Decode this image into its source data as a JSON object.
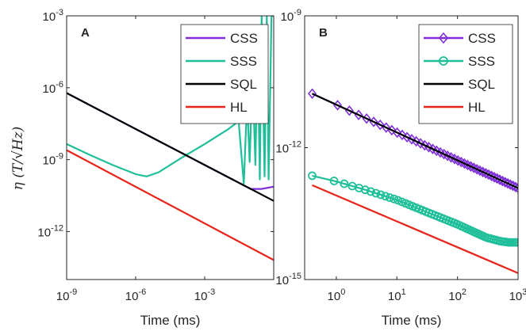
{
  "chart_data": [
    {
      "type": "line",
      "panel_label": "A",
      "xlabel": "Time (ms)",
      "ylabel": "η (T/√Hz)",
      "xscale": "log",
      "yscale": "log",
      "xlim": [
        1e-09,
        1
      ],
      "ylim": [
        1e-14,
        0.001
      ],
      "xticks": [
        1e-09,
        1e-06,
        0.001
      ],
      "xtick_labels": [
        [
          "10",
          "-9"
        ],
        [
          "10",
          "-6"
        ],
        [
          "10",
          "-3"
        ]
      ],
      "yticks": [
        1e-12,
        1e-09,
        1e-06,
        0.001
      ],
      "ytick_labels": [
        [
          "10",
          "-12"
        ],
        [
          "10",
          "-9"
        ],
        [
          "10",
          "-6"
        ],
        [
          "10",
          "-3"
        ]
      ],
      "legend_location": "top-right",
      "series": [
        {
          "name": "CSS",
          "color": "#7E2FD8",
          "marker": "none",
          "x": [
            1e-09,
            1e-08,
            1e-07,
            1e-06,
            1e-05,
            0.0001,
            0.001,
            0.01,
            0.03,
            0.1,
            0.3,
            1
          ],
          "y": [
            6e-07,
            1.9e-07,
            6e-08,
            1.9e-08,
            6e-09,
            1.9e-09,
            6e-10,
            1.9e-10,
            1.1e-10,
            6e-11,
            6e-11,
            7.5e-11
          ]
        },
        {
          "name": "SSS",
          "color": "#1FBF9A",
          "marker": "none",
          "x": [
            1e-09,
            1e-08,
            1e-07,
            1e-06,
            3e-06,
            1e-05,
            0.0001,
            0.001,
            0.01,
            0.03,
            0.05,
            0.07,
            0.09,
            0.12,
            0.16,
            0.2,
            0.25,
            0.3,
            0.4,
            0.5,
            0.6,
            0.8,
            1
          ],
          "y": [
            4.5e-09,
            1.6e-09,
            6e-10,
            2.5e-10,
            2e-10,
            3e-10,
            1.2e-09,
            4.5e-09,
            1.8e-08,
            4e-08,
            1e-10,
            3e-07,
            8e-10,
            4e-06,
            6e-10,
            6e-05,
            1.5e-10,
            0.001,
            2e-10,
            0.001,
            1.5e-10,
            0.001,
            0.001
          ]
        },
        {
          "name": "SQL",
          "color": "#000000",
          "marker": "none",
          "x": [
            1e-09,
            1
          ],
          "y": [
            6e-07,
            1.9e-11
          ]
        },
        {
          "name": "HL",
          "color": "#E8231A",
          "marker": "none",
          "x": [
            1e-09,
            1
          ],
          "y": [
            2.5e-09,
            6.5e-14
          ]
        }
      ]
    },
    {
      "type": "line",
      "panel_label": "B",
      "xlabel": "Time (ms)",
      "ylabel": "",
      "xscale": "log",
      "yscale": "log",
      "xlim": [
        0.3,
        1000
      ],
      "ylim": [
        1e-15,
        1e-09
      ],
      "xticks": [
        1,
        10,
        100,
        1000
      ],
      "xtick_labels": [
        [
          "10",
          "0"
        ],
        [
          "10",
          "1"
        ],
        [
          "10",
          "2"
        ],
        [
          "10",
          "3"
        ]
      ],
      "yticks": [
        1e-15,
        1e-12,
        1e-09
      ],
      "ytick_labels": [
        [
          "10",
          "-15"
        ],
        [
          "10",
          "-12"
        ],
        [
          "10",
          "-9"
        ]
      ],
      "legend_location": "top-right",
      "series": [
        {
          "name": "CSS",
          "color": "#7E2FD8",
          "marker": "diamond",
          "x": [
            0.4,
            1000
          ],
          "y": [
            1.7e-11,
            1.2e-13
          ]
        },
        {
          "name": "SSS",
          "color": "#1FBF9A",
          "marker": "circle",
          "x": [
            0.4,
            1,
            3,
            10,
            30,
            100,
            300,
            500,
            700,
            1000
          ],
          "y": [
            2.3e-13,
            1.7e-13,
            1.1e-13,
            6.5e-14,
            3.5e-14,
            1.8e-14,
            9e-15,
            7.5e-15,
            7e-15,
            7e-15
          ]
        },
        {
          "name": "SQL",
          "color": "#000000",
          "marker": "none",
          "x": [
            0.4,
            1000
          ],
          "y": [
            1.7e-11,
            1.2e-13
          ]
        },
        {
          "name": "HL",
          "color": "#E8231A",
          "marker": "none",
          "x": [
            0.4,
            1000
          ],
          "y": [
            1.4e-13,
            1.4e-15
          ]
        }
      ]
    }
  ]
}
